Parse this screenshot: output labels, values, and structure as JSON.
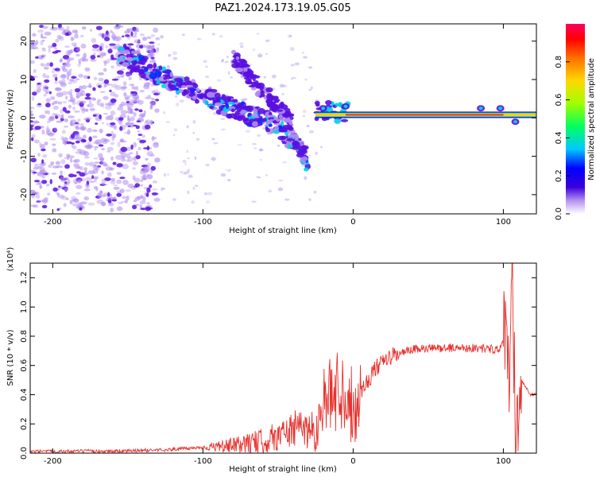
{
  "figure": {
    "title": "PAZ1.2024.173.19.05.G05"
  },
  "colors": {
    "snr_line": "#e8322e",
    "sig_low": "#b08cf0",
    "sig_mid": "#5a10e0",
    "sig_high": "#3a00c8",
    "band_edge": "#1800c0",
    "band_core": "#e83020"
  },
  "chart_data": [
    {
      "type": "heatmap",
      "title": "PAZ1.2024.173.19.05.G05",
      "xlabel": "Height of straight line (km)",
      "ylabel": "Frequency (Hz)",
      "xlim": [
        -215,
        122
      ],
      "ylim": [
        -25,
        24.5
      ],
      "x_ticks": [
        -200,
        -100,
        0,
        100
      ],
      "y_ticks": [
        -20,
        -10,
        0,
        10,
        20
      ],
      "grid": false,
      "colorbar": {
        "label": "Normalized spectral amplitude",
        "range": [
          0.0,
          1.0
        ],
        "ticks": [
          0.0,
          0.2,
          0.4,
          0.6,
          0.8
        ],
        "colormap": [
          "#ffffff",
          "#b591ef",
          "#3b00dc",
          "#0000ff",
          "#00c8ff",
          "#00ff60",
          "#a0ff00",
          "#ffd800",
          "#ff7000",
          "#ff0000",
          "#ff0060"
        ]
      },
      "features": {
        "scatter_region_x": [
          -215,
          -130
        ],
        "scatter_region_y": [
          -24,
          24
        ],
        "diagonal_trace": [
          [
            -155,
            17
          ],
          [
            -125,
            10
          ],
          [
            -100,
            6
          ],
          [
            -75,
            1.5
          ],
          [
            -55,
            -1
          ],
          [
            -35,
            -8
          ],
          [
            -30,
            -12
          ]
        ],
        "secondary_trace": [
          [
            -80,
            16
          ],
          [
            -65,
            9
          ],
          [
            -50,
            3
          ],
          [
            -40,
            -2
          ]
        ],
        "tone_band": {
          "x_start": -25,
          "x_end": 122,
          "freq": 0.8,
          "amplitude": 0.9
        }
      }
    },
    {
      "type": "line",
      "xlabel": "Height of straight line (km)",
      "ylabel": "SNR (10 * v/v)",
      "y_multiplier": "(x10⁴)",
      "xlim": [
        -215,
        122
      ],
      "ylim": [
        0.0,
        1.3
      ],
      "x_ticks": [
        -200,
        -100,
        0,
        100
      ],
      "y_ticks": [
        0.0,
        0.2,
        0.4,
        0.6,
        0.8,
        1.0,
        1.2
      ],
      "grid": false,
      "series": [
        {
          "key_points": [
            [
              -215,
              0.01
            ],
            [
              -150,
              0.015
            ],
            [
              -120,
              0.025
            ],
            [
              -100,
              0.04
            ],
            [
              -80,
              0.05
            ],
            [
              -60,
              0.08
            ],
            [
              -45,
              0.14
            ],
            [
              -35,
              0.18
            ],
            [
              -25,
              0.15
            ],
            [
              -20,
              0.32
            ],
            [
              -15,
              0.38
            ],
            [
              -10,
              0.45
            ],
            [
              -5,
              0.42
            ],
            [
              0,
              0.3
            ],
            [
              5,
              0.42
            ],
            [
              15,
              0.58
            ],
            [
              25,
              0.66
            ],
            [
              40,
              0.71
            ],
            [
              60,
              0.72
            ],
            [
              80,
              0.72
            ],
            [
              98,
              0.71
            ],
            [
              102,
              0.8
            ],
            [
              104,
              0.4
            ],
            [
              106,
              1.27
            ],
            [
              108,
              0.2
            ],
            [
              112,
              0.5
            ],
            [
              118,
              0.4
            ],
            [
              122,
              0.4
            ]
          ]
        }
      ]
    }
  ]
}
